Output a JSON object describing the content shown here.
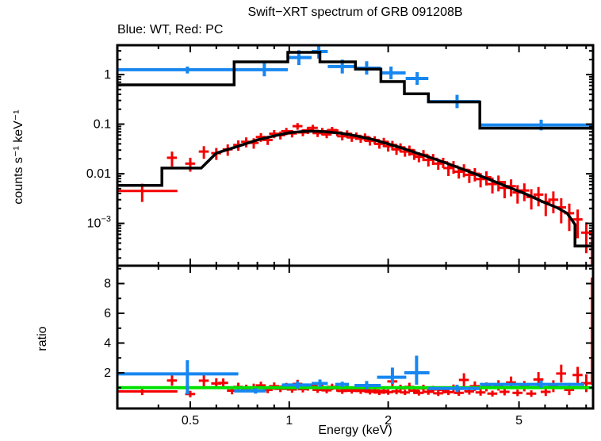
{
  "header": {
    "title": "Swift−XRT spectrum of GRB 091208B",
    "subtitle": "Blue: WT, Red: PC"
  },
  "colors": {
    "wt_blue": "#1787f0",
    "pc_red": "#f40000",
    "model_black": "#000000",
    "ratio_green": "#00e100",
    "frame": "#000000"
  },
  "chart_data": {
    "type": "scatter",
    "title": "Swift−XRT spectrum of GRB 091208B",
    "legend_note": "Blue: WT, Red: PC",
    "xlabel": "Energy (keV)",
    "xscale": "log",
    "xlim": [
      0.3,
      8.4
    ],
    "xticks": [
      {
        "v": 0.5,
        "label": "0.5"
      },
      {
        "v": 1,
        "label": "1"
      },
      {
        "v": 2,
        "label": "2"
      },
      {
        "v": 5,
        "label": "5"
      }
    ],
    "xminor": [
      0.4,
      0.6,
      0.7,
      0.8,
      0.9,
      3,
      4,
      6,
      7,
      8
    ],
    "panels": [
      {
        "name": "spectrum",
        "ylabel": "counts s⁻¹ keV⁻¹",
        "yscale": "log",
        "ylim": [
          0.00014,
          3.9
        ],
        "yticks": [
          {
            "v": 1,
            "label": "1"
          },
          {
            "v": 0.1,
            "label": "0.1"
          },
          {
            "v": 0.01,
            "label": "0.01"
          },
          {
            "v": 0.001,
            "label": "10",
            "sup": "−3"
          }
        ]
      },
      {
        "name": "ratio",
        "ylabel": "ratio",
        "yscale": "linear",
        "ylim": [
          -0.4,
          9.2
        ],
        "yticks": [
          {
            "v": 2,
            "label": "2"
          },
          {
            "v": 4,
            "label": "4"
          },
          {
            "v": 6,
            "label": "6"
          },
          {
            "v": 8,
            "label": "8"
          }
        ],
        "yminor": [
          1,
          3,
          5,
          7,
          9
        ],
        "reference_line": 1
      }
    ],
    "series": {
      "wt_spectrum": [
        {
          "e": 0.49,
          "elo": 0.3,
          "ehi": 0.7,
          "v": 1.25,
          "vlo": 1.05,
          "vhi": 1.45
        },
        {
          "e": 0.84,
          "elo": 0.7,
          "ehi": 0.99,
          "v": 1.25,
          "vlo": 0.92,
          "vhi": 1.75
        },
        {
          "e": 1.07,
          "elo": 0.99,
          "ehi": 1.17,
          "v": 2.2,
          "vlo": 1.55,
          "vhi": 3.1
        },
        {
          "e": 1.23,
          "elo": 1.17,
          "ehi": 1.31,
          "v": 2.9,
          "vlo": 2.1,
          "vhi": 4.1
        },
        {
          "e": 1.45,
          "elo": 1.31,
          "ehi": 1.58,
          "v": 1.45,
          "vlo": 1.05,
          "vhi": 2.0
        },
        {
          "e": 1.72,
          "elo": 1.58,
          "ehi": 1.9,
          "v": 1.35,
          "vlo": 1.0,
          "vhi": 1.85
        },
        {
          "e": 2.04,
          "elo": 1.9,
          "ehi": 2.26,
          "v": 1.08,
          "vlo": 0.8,
          "vhi": 1.45
        },
        {
          "e": 2.45,
          "elo": 2.26,
          "ehi": 2.65,
          "v": 0.83,
          "vlo": 0.62,
          "vhi": 1.12
        },
        {
          "e": 3.24,
          "elo": 2.65,
          "ehi": 3.8,
          "v": 0.285,
          "vlo": 0.21,
          "vhi": 0.39
        },
        {
          "e": 5.84,
          "elo": 3.8,
          "ehi": 8.4,
          "v": 0.096,
          "vlo": 0.075,
          "vhi": 0.123
        }
      ],
      "wt_model_steps": [
        {
          "e1": 0.3,
          "e2": 0.68,
          "v": 0.62
        },
        {
          "e1": 0.68,
          "e2": 0.99,
          "v": 1.8
        },
        {
          "e1": 0.99,
          "e2": 1.24,
          "v": 2.8
        },
        {
          "e1": 1.24,
          "e2": 1.59,
          "v": 1.8
        },
        {
          "e1": 1.59,
          "e2": 1.9,
          "v": 1.29
        },
        {
          "e1": 1.9,
          "e2": 2.24,
          "v": 0.72
        },
        {
          "e1": 2.24,
          "e2": 2.65,
          "v": 0.41
        },
        {
          "e1": 2.65,
          "e2": 3.8,
          "v": 0.28
        },
        {
          "e1": 3.8,
          "e2": 8.4,
          "v": 0.083
        }
      ],
      "pc_spectrum": [
        [
          0.357,
          0.0045,
          0.0018,
          0.1
        ],
        [
          0.44,
          0.021,
          0.007
        ],
        [
          0.5,
          0.016,
          0.005
        ],
        [
          0.55,
          0.028,
          0.008
        ],
        [
          0.6,
          0.026,
          0.007
        ],
        [
          0.65,
          0.031,
          0.008
        ],
        [
          0.7,
          0.038,
          0.009
        ],
        [
          0.74,
          0.044,
          0.01
        ],
        [
          0.78,
          0.042,
          0.01
        ],
        [
          0.82,
          0.055,
          0.011
        ],
        [
          0.86,
          0.048,
          0.01
        ],
        [
          0.9,
          0.064,
          0.012
        ],
        [
          0.94,
          0.06,
          0.011
        ],
        [
          0.98,
          0.072,
          0.012
        ],
        [
          1.02,
          0.065,
          0.011
        ],
        [
          1.06,
          0.091,
          0.014
        ],
        [
          1.1,
          0.068,
          0.011
        ],
        [
          1.14,
          0.075,
          0.012
        ],
        [
          1.18,
          0.084,
          0.013
        ],
        [
          1.22,
          0.066,
          0.011
        ],
        [
          1.26,
          0.072,
          0.012
        ],
        [
          1.3,
          0.062,
          0.01
        ],
        [
          1.35,
          0.076,
          0.012
        ],
        [
          1.4,
          0.068,
          0.011
        ],
        [
          1.45,
          0.057,
          0.01
        ],
        [
          1.5,
          0.064,
          0.011
        ],
        [
          1.55,
          0.054,
          0.01
        ],
        [
          1.6,
          0.058,
          0.01
        ],
        [
          1.65,
          0.051,
          0.009
        ],
        [
          1.7,
          0.055,
          0.01
        ],
        [
          1.76,
          0.046,
          0.009
        ],
        [
          1.82,
          0.048,
          0.009
        ],
        [
          1.88,
          0.04,
          0.008
        ],
        [
          1.94,
          0.044,
          0.009
        ],
        [
          2.0,
          0.036,
          0.008
        ],
        [
          2.06,
          0.038,
          0.008
        ],
        [
          2.12,
          0.031,
          0.007
        ],
        [
          2.18,
          0.034,
          0.007
        ],
        [
          2.25,
          0.028,
          0.006
        ],
        [
          2.32,
          0.03,
          0.007
        ],
        [
          2.4,
          0.025,
          0.006
        ],
        [
          2.48,
          0.022,
          0.005
        ],
        [
          2.56,
          0.024,
          0.006
        ],
        [
          2.65,
          0.019,
          0.005
        ],
        [
          2.74,
          0.02,
          0.005
        ],
        [
          2.84,
          0.016,
          0.004
        ],
        [
          2.94,
          0.017,
          0.004
        ],
        [
          3.05,
          0.013,
          0.004
        ],
        [
          3.16,
          0.014,
          0.004
        ],
        [
          3.28,
          0.011,
          0.003
        ],
        [
          3.4,
          0.012,
          0.0035
        ],
        [
          3.53,
          0.0095,
          0.003
        ],
        [
          3.67,
          0.01,
          0.003
        ],
        [
          3.82,
          0.0078,
          0.0025
        ],
        [
          3.98,
          0.0085,
          0.0027
        ],
        [
          4.15,
          0.0062,
          0.0022
        ],
        [
          4.33,
          0.0068,
          0.0024
        ],
        [
          4.52,
          0.0052,
          0.002
        ],
        [
          4.73,
          0.0056,
          0.0021
        ],
        [
          4.95,
          0.0042,
          0.0017
        ],
        [
          5.19,
          0.0046,
          0.0018
        ],
        [
          5.45,
          0.0034,
          0.0015
        ],
        [
          5.73,
          0.0038,
          0.0016
        ],
        [
          6.03,
          0.0027,
          0.0013
        ],
        [
          6.36,
          0.003,
          0.0014
        ],
        [
          6.72,
          0.0021,
          0.0011
        ],
        [
          7.11,
          0.0016,
          0.0009
        ],
        [
          7.54,
          0.0012,
          0.0007
        ],
        [
          8.01,
          0.00065,
          0.0004
        ],
        [
          8.33,
          0.00029,
          0.00045,
          0.07
        ]
      ],
      "pc_model": [
        [
          0.3,
          0.0058
        ],
        [
          0.41,
          0.0058
        ],
        [
          0.41,
          0.013
        ],
        [
          0.54,
          0.013
        ],
        [
          0.6,
          0.026
        ],
        [
          0.7,
          0.036
        ],
        [
          0.8,
          0.048
        ],
        [
          0.9,
          0.058
        ],
        [
          1.0,
          0.067
        ],
        [
          1.1,
          0.071
        ],
        [
          1.2,
          0.072
        ],
        [
          1.3,
          0.07
        ],
        [
          1.45,
          0.065
        ],
        [
          1.6,
          0.058
        ],
        [
          1.8,
          0.049
        ],
        [
          2.0,
          0.04
        ],
        [
          2.2,
          0.033
        ],
        [
          2.45,
          0.026
        ],
        [
          2.7,
          0.021
        ],
        [
          3.0,
          0.0165
        ],
        [
          3.3,
          0.013
        ],
        [
          3.6,
          0.0105
        ],
        [
          4.0,
          0.008
        ],
        [
          4.4,
          0.0062
        ],
        [
          4.8,
          0.0049
        ],
        [
          5.2,
          0.004
        ],
        [
          5.6,
          0.0032
        ],
        [
          6.0,
          0.0026
        ],
        [
          6.5,
          0.0021
        ],
        [
          7.0,
          0.0016
        ],
        [
          7.4,
          0.00095
        ],
        [
          7.4,
          0.00035
        ],
        [
          8.4,
          0.00035
        ]
      ],
      "wt_ratio": [
        {
          "e": 0.49,
          "elo": 0.3,
          "ehi": 0.7,
          "r": 1.93,
          "rlo": 0.55,
          "rhi": 2.85
        },
        {
          "e": 0.79,
          "elo": 0.68,
          "ehi": 0.85,
          "r": 0.78,
          "rlo": 0.6,
          "rhi": 0.96
        },
        {
          "e": 1.06,
          "elo": 0.95,
          "ehi": 1.17,
          "r": 1.18,
          "rlo": 0.95,
          "rhi": 1.42
        },
        {
          "e": 1.24,
          "elo": 1.17,
          "ehi": 1.31,
          "r": 1.28,
          "rlo": 1.05,
          "rhi": 1.55
        },
        {
          "e": 1.45,
          "elo": 1.38,
          "ehi": 1.52,
          "r": 1.22,
          "rlo": 1.05,
          "rhi": 1.4
        },
        {
          "e": 1.72,
          "elo": 1.58,
          "ehi": 1.9,
          "r": 1.15,
          "rlo": 0.88,
          "rhi": 1.45
        },
        {
          "e": 2.06,
          "elo": 1.85,
          "ehi": 2.27,
          "r": 1.7,
          "rlo": 1.25,
          "rhi": 2.35
        },
        {
          "e": 2.44,
          "elo": 2.24,
          "ehi": 2.67,
          "r": 2.0,
          "rlo": 1.2,
          "rhi": 3.15
        },
        {
          "e": 3.24,
          "elo": 2.65,
          "ehi": 3.8,
          "r": 0.95,
          "rlo": 0.7,
          "rhi": 1.2
        },
        {
          "e": 5.84,
          "elo": 3.8,
          "ehi": 7.9,
          "r": 1.22,
          "rlo": 1.0,
          "rhi": 1.48
        }
      ],
      "pc_ratio": [
        [
          0.357,
          0.75,
          0.25,
          0.1
        ],
        [
          0.44,
          1.48,
          0.35
        ],
        [
          0.5,
          0.57,
          0.22
        ],
        [
          0.55,
          1.47,
          0.4
        ],
        [
          0.6,
          1.28,
          0.35
        ],
        [
          0.63,
          1.32,
          0.3
        ],
        [
          0.67,
          0.8,
          0.25
        ],
        [
          0.7,
          1.05,
          0.28
        ],
        [
          0.74,
          0.95,
          0.25
        ],
        [
          0.78,
          1.02,
          0.25
        ],
        [
          0.82,
          1.15,
          0.25
        ],
        [
          0.86,
          0.85,
          0.22
        ],
        [
          0.9,
          1.1,
          0.25
        ],
        [
          0.94,
          0.92,
          0.22
        ],
        [
          0.98,
          1.08,
          0.24
        ],
        [
          1.02,
          0.88,
          0.22
        ],
        [
          1.06,
          1.25,
          0.28
        ],
        [
          1.1,
          0.9,
          0.22
        ],
        [
          1.14,
          1.02,
          0.22
        ],
        [
          1.18,
          1.12,
          0.24
        ],
        [
          1.22,
          0.85,
          0.2
        ],
        [
          1.26,
          0.98,
          0.22
        ],
        [
          1.3,
          0.82,
          0.2
        ],
        [
          1.35,
          1.05,
          0.22
        ],
        [
          1.4,
          0.95,
          0.22
        ],
        [
          1.45,
          0.78,
          0.2
        ],
        [
          1.5,
          0.92,
          0.2
        ],
        [
          1.55,
          0.8,
          0.2
        ],
        [
          1.6,
          0.9,
          0.2
        ],
        [
          1.65,
          0.78,
          0.2
        ],
        [
          1.7,
          0.88,
          0.2
        ],
        [
          1.76,
          0.72,
          0.18
        ],
        [
          1.82,
          0.8,
          0.2
        ],
        [
          1.88,
          0.68,
          0.18
        ],
        [
          1.94,
          0.78,
          0.2
        ],
        [
          2.0,
          0.7,
          0.18
        ],
        [
          2.06,
          1.42,
          0.35
        ],
        [
          2.12,
          0.75,
          0.2
        ],
        [
          2.18,
          0.95,
          0.25
        ],
        [
          2.25,
          0.68,
          0.18
        ],
        [
          2.32,
          1.05,
          0.28
        ],
        [
          2.4,
          0.8,
          0.22
        ],
        [
          2.48,
          0.65,
          0.18
        ],
        [
          2.56,
          0.95,
          0.25
        ],
        [
          2.65,
          0.72,
          0.2
        ],
        [
          2.74,
          0.88,
          0.24
        ],
        [
          2.84,
          0.62,
          0.18
        ],
        [
          2.94,
          0.85,
          0.24
        ],
        [
          3.05,
          0.7,
          0.2
        ],
        [
          3.16,
          0.95,
          0.26
        ],
        [
          3.28,
          0.65,
          0.2
        ],
        [
          3.4,
          1.52,
          0.45
        ],
        [
          3.53,
          0.75,
          0.22
        ],
        [
          3.67,
          1.1,
          0.32
        ],
        [
          3.82,
          0.68,
          0.22
        ],
        [
          3.98,
          1.05,
          0.3
        ],
        [
          4.15,
          0.6,
          0.2
        ],
        [
          4.33,
          1.15,
          0.35
        ],
        [
          4.52,
          0.72,
          0.24
        ],
        [
          4.73,
          1.35,
          0.4
        ],
        [
          4.95,
          0.65,
          0.22
        ],
        [
          5.19,
          1.1,
          0.35
        ],
        [
          5.45,
          0.6,
          0.22
        ],
        [
          5.73,
          1.55,
          0.5
        ],
        [
          6.03,
          0.72,
          0.28
        ],
        [
          6.36,
          1.1,
          0.4
        ],
        [
          6.72,
          1.95,
          0.6
        ],
        [
          7.11,
          0.85,
          0.35
        ],
        [
          7.54,
          1.85,
          0.55
        ],
        [
          8.01,
          1.3,
          0.6
        ],
        [
          8.33,
          4.8,
          3.6,
          0.07
        ]
      ]
    }
  }
}
